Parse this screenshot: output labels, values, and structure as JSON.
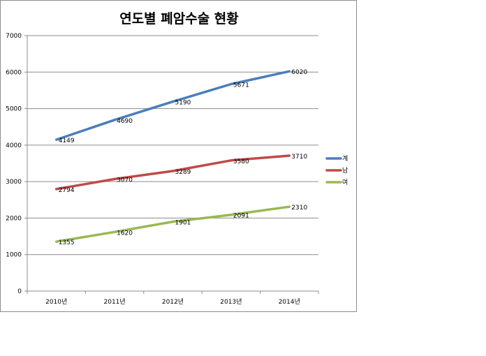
{
  "chart_data": {
    "type": "line",
    "title": "연도별 폐암수술 현황",
    "xlabel": "",
    "ylabel": "",
    "categories": [
      "2010년",
      "2011년",
      "2012년",
      "2013년",
      "2014년"
    ],
    "ylim": [
      0,
      7000
    ],
    "yticks": [
      0,
      1000,
      2000,
      3000,
      4000,
      5000,
      6000,
      7000
    ],
    "grid": true,
    "legend_position": "right",
    "series": [
      {
        "name": "계",
        "values": [
          4149,
          4690,
          5190,
          5671,
          6020
        ],
        "color": "#4a7ebb"
      },
      {
        "name": "남",
        "values": [
          2794,
          3070,
          3289,
          3580,
          3710
        ],
        "color": "#be4b48"
      },
      {
        "name": "여",
        "values": [
          1355,
          1620,
          1901,
          2091,
          2310
        ],
        "color": "#98b954"
      }
    ]
  }
}
